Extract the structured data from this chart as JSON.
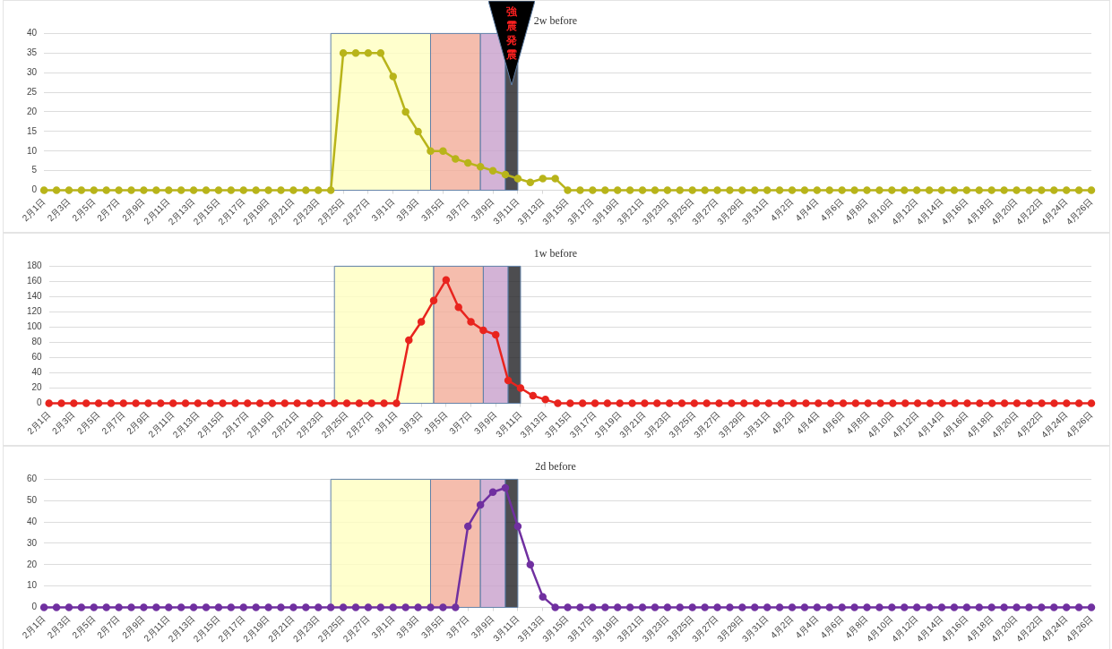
{
  "chart_data": [
    {
      "type": "line",
      "title": "2w before",
      "x": [
        "--02-01",
        "--02-02",
        "--02-03",
        "--02-04",
        "--02-05",
        "--02-06",
        "--02-07",
        "--02-08",
        "--02-09",
        "--02-10",
        "--02-11",
        "--02-12",
        "--02-13",
        "--02-14",
        "--02-15",
        "--02-16",
        "--02-17",
        "--02-18",
        "--02-19",
        "--02-20",
        "--02-21",
        "--02-22",
        "--02-23",
        "--02-24",
        "--02-25",
        "--02-26",
        "--02-27",
        "--02-28",
        "--03-01",
        "--03-02",
        "--03-03",
        "--03-04",
        "--03-05",
        "--03-06",
        "--03-07",
        "--03-08",
        "--03-09",
        "--03-10",
        "--03-11",
        "--03-12",
        "--03-13",
        "--03-14",
        "--03-15",
        "--03-16",
        "--03-17",
        "--03-18",
        "--03-19",
        "--03-20",
        "--03-21",
        "--03-22",
        "--03-23",
        "--03-24",
        "--03-25",
        "--03-26",
        "--03-27",
        "--03-28",
        "--03-29",
        "--03-30",
        "--03-31",
        "--04-01",
        "--04-02",
        "--04-03",
        "--04-04",
        "--04-05",
        "--04-06",
        "--04-07",
        "--04-08",
        "--04-09",
        "--04-10",
        "--04-11",
        "--04-12",
        "--04-13",
        "--04-14",
        "--04-15",
        "--04-16",
        "--04-17",
        "--04-18",
        "--04-19",
        "--04-20",
        "--04-21",
        "--04-22",
        "--04-23",
        "--04-24",
        "--04-25",
        "--04-26"
      ],
      "series": [
        {
          "color": "#b8b41a",
          "values": [
            0,
            0,
            0,
            0,
            0,
            0,
            0,
            0,
            0,
            0,
            0,
            0,
            0,
            0,
            0,
            0,
            0,
            0,
            0,
            0,
            0,
            0,
            0,
            0,
            35,
            35,
            35,
            35,
            29,
            20,
            15,
            10,
            10,
            8,
            7,
            6,
            5,
            4,
            3,
            2,
            3,
            3,
            0,
            0,
            0,
            0,
            0,
            0,
            0,
            0,
            0,
            0,
            0,
            0,
            0,
            0,
            0,
            0,
            0,
            0,
            0,
            0,
            0,
            0,
            0,
            0,
            0,
            0,
            0,
            0,
            0,
            0,
            0,
            0,
            0,
            0,
            0,
            0,
            0,
            0,
            0,
            0,
            0,
            0,
            0
          ]
        }
      ],
      "xlim": [
        "--02-01",
        "--04-26"
      ],
      "xticks": [
        {
          "value": "--02-01",
          "label": "2月1日"
        },
        {
          "value": "--02-03",
          "label": "2月3日"
        },
        {
          "value": "--02-05",
          "label": "2月5日"
        },
        {
          "value": "--02-07",
          "label": "2月7日"
        },
        {
          "value": "--02-09",
          "label": "2月9日"
        },
        {
          "value": "--02-11",
          "label": "2月11日"
        },
        {
          "value": "--02-13",
          "label": "2月13日"
        },
        {
          "value": "--02-15",
          "label": "2月15日"
        },
        {
          "value": "--02-17",
          "label": "2月17日"
        },
        {
          "value": "--02-19",
          "label": "2月19日"
        },
        {
          "value": "--02-21",
          "label": "2月21日"
        },
        {
          "value": "--02-23",
          "label": "2月23日"
        },
        {
          "value": "--02-25",
          "label": "2月25日"
        },
        {
          "value": "--02-27",
          "label": "2月27日"
        },
        {
          "value": "--03-01",
          "label": "3月1日"
        },
        {
          "value": "--03-03",
          "label": "3月3日"
        },
        {
          "value": "--03-05",
          "label": "3月5日"
        },
        {
          "value": "--03-07",
          "label": "3月7日"
        },
        {
          "value": "--03-09",
          "label": "3月9日"
        },
        {
          "value": "--03-11",
          "label": "3月11日"
        },
        {
          "value": "--03-13",
          "label": "3月13日"
        },
        {
          "value": "--03-15",
          "label": "3月15日"
        },
        {
          "value": "--03-17",
          "label": "3月17日"
        },
        {
          "value": "--03-19",
          "label": "3月19日"
        },
        {
          "value": "--03-21",
          "label": "3月21日"
        },
        {
          "value": "--03-23",
          "label": "3月23日"
        },
        {
          "value": "--03-25",
          "label": "3月25日"
        },
        {
          "value": "--03-27",
          "label": "3月27日"
        },
        {
          "value": "--03-29",
          "label": "3月29日"
        },
        {
          "value": "--03-31",
          "label": "3月31日"
        },
        {
          "value": "--04-02",
          "label": "4月2日"
        },
        {
          "value": "--04-04",
          "label": "4月4日"
        },
        {
          "value": "--04-06",
          "label": "4月6日"
        },
        {
          "value": "--04-08",
          "label": "4月8日"
        },
        {
          "value": "--04-10",
          "label": "4月10日"
        },
        {
          "value": "--04-12",
          "label": "4月12日"
        },
        {
          "value": "--04-14",
          "label": "4月14日"
        },
        {
          "value": "--04-16",
          "label": "4月16日"
        },
        {
          "value": "--04-18",
          "label": "4月18日"
        },
        {
          "value": "--04-20",
          "label": "4月20日"
        },
        {
          "value": "--04-22",
          "label": "4月22日"
        },
        {
          "value": "--04-24",
          "label": "4月24日"
        },
        {
          "value": "--04-26",
          "label": "4月26日"
        }
      ],
      "ylim": [
        0,
        40
      ],
      "yticks": [
        0,
        5,
        10,
        15,
        20,
        25,
        30,
        35,
        40
      ],
      "grid": "y",
      "marker": "circle",
      "bands": [
        {
          "axis": "x",
          "from": "--02-24",
          "to": "--03-04",
          "color": "#ffffc0"
        },
        {
          "axis": "x",
          "from": "--03-04",
          "to": "--03-08",
          "color": "#f2ac98"
        },
        {
          "axis": "x",
          "from": "--03-08",
          "to": "--03-10",
          "color": "#c8a0cc"
        },
        {
          "axis": "x",
          "from": "--03-10",
          "to": "--03-11",
          "color": "#202024",
          "label": "強震発震"
        }
      ]
    },
    {
      "type": "line",
      "title": "1w before",
      "x": [
        "--02-01",
        "--02-02",
        "--02-03",
        "--02-04",
        "--02-05",
        "--02-06",
        "--02-07",
        "--02-08",
        "--02-09",
        "--02-10",
        "--02-11",
        "--02-12",
        "--02-13",
        "--02-14",
        "--02-15",
        "--02-16",
        "--02-17",
        "--02-18",
        "--02-19",
        "--02-20",
        "--02-21",
        "--02-22",
        "--02-23",
        "--02-24",
        "--02-25",
        "--02-26",
        "--02-27",
        "--02-28",
        "--03-01",
        "--03-02",
        "--03-03",
        "--03-04",
        "--03-05",
        "--03-06",
        "--03-07",
        "--03-08",
        "--03-09",
        "--03-10",
        "--03-11",
        "--03-12",
        "--03-13",
        "--03-14",
        "--03-15",
        "--03-16",
        "--03-17",
        "--03-18",
        "--03-19",
        "--03-20",
        "--03-21",
        "--03-22",
        "--03-23",
        "--03-24",
        "--03-25",
        "--03-26",
        "--03-27",
        "--03-28",
        "--03-29",
        "--03-30",
        "--03-31",
        "--04-01",
        "--04-02",
        "--04-03",
        "--04-04",
        "--04-05",
        "--04-06",
        "--04-07",
        "--04-08",
        "--04-09",
        "--04-10",
        "--04-11",
        "--04-12",
        "--04-13",
        "--04-14",
        "--04-15",
        "--04-16",
        "--04-17",
        "--04-18",
        "--04-19",
        "--04-20",
        "--04-21",
        "--04-22",
        "--04-23",
        "--04-24",
        "--04-25",
        "--04-26"
      ],
      "series": [
        {
          "color": "#e8241e",
          "values": [
            0,
            0,
            0,
            0,
            0,
            0,
            0,
            0,
            0,
            0,
            0,
            0,
            0,
            0,
            0,
            0,
            0,
            0,
            0,
            0,
            0,
            0,
            0,
            0,
            0,
            0,
            0,
            0,
            0,
            83,
            107,
            135,
            162,
            126,
            107,
            96,
            90,
            30,
            20,
            10,
            5,
            0,
            0,
            0,
            0,
            0,
            0,
            0,
            0,
            0,
            0,
            0,
            0,
            0,
            0,
            0,
            0,
            0,
            0,
            0,
            0,
            0,
            0,
            0,
            0,
            0,
            0,
            0,
            0,
            0,
            0,
            0,
            0,
            0,
            0,
            0,
            0,
            0,
            0,
            0,
            0,
            0,
            0,
            0,
            0
          ]
        }
      ],
      "xlim": [
        "--02-01",
        "--04-26"
      ],
      "xticks": [
        {
          "value": "--02-01",
          "label": "2月1日"
        },
        {
          "value": "--02-03",
          "label": "2月3日"
        },
        {
          "value": "--02-05",
          "label": "2月5日"
        },
        {
          "value": "--02-07",
          "label": "2月7日"
        },
        {
          "value": "--02-09",
          "label": "2月9日"
        },
        {
          "value": "--02-11",
          "label": "2月11日"
        },
        {
          "value": "--02-13",
          "label": "2月13日"
        },
        {
          "value": "--02-15",
          "label": "2月15日"
        },
        {
          "value": "--02-17",
          "label": "2月17日"
        },
        {
          "value": "--02-19",
          "label": "2月19日"
        },
        {
          "value": "--02-21",
          "label": "2月21日"
        },
        {
          "value": "--02-23",
          "label": "2月23日"
        },
        {
          "value": "--02-25",
          "label": "2月25日"
        },
        {
          "value": "--02-27",
          "label": "2月27日"
        },
        {
          "value": "--03-01",
          "label": "3月1日"
        },
        {
          "value": "--03-03",
          "label": "3月3日"
        },
        {
          "value": "--03-05",
          "label": "3月5日"
        },
        {
          "value": "--03-07",
          "label": "3月7日"
        },
        {
          "value": "--03-09",
          "label": "3月9日"
        },
        {
          "value": "--03-11",
          "label": "3月11日"
        },
        {
          "value": "--03-13",
          "label": "3月13日"
        },
        {
          "value": "--03-15",
          "label": "3月15日"
        },
        {
          "value": "--03-17",
          "label": "3月17日"
        },
        {
          "value": "--03-19",
          "label": "3月19日"
        },
        {
          "value": "--03-21",
          "label": "3月21日"
        },
        {
          "value": "--03-23",
          "label": "3月23日"
        },
        {
          "value": "--03-25",
          "label": "3月25日"
        },
        {
          "value": "--03-27",
          "label": "3月27日"
        },
        {
          "value": "--03-29",
          "label": "3月29日"
        },
        {
          "value": "--03-31",
          "label": "3月31日"
        },
        {
          "value": "--04-02",
          "label": "4月2日"
        },
        {
          "value": "--04-04",
          "label": "4月4日"
        },
        {
          "value": "--04-06",
          "label": "4月6日"
        },
        {
          "value": "--04-08",
          "label": "4月8日"
        },
        {
          "value": "--04-10",
          "label": "4月10日"
        },
        {
          "value": "--04-12",
          "label": "4月12日"
        },
        {
          "value": "--04-14",
          "label": "4月14日"
        },
        {
          "value": "--04-16",
          "label": "4月16日"
        },
        {
          "value": "--04-18",
          "label": "4月18日"
        },
        {
          "value": "--04-20",
          "label": "4月20日"
        },
        {
          "value": "--04-22",
          "label": "4月22日"
        },
        {
          "value": "--04-24",
          "label": "4月24日"
        },
        {
          "value": "--04-26",
          "label": "4月26日"
        }
      ],
      "ylim": [
        0,
        180
      ],
      "yticks": [
        0,
        20,
        40,
        60,
        80,
        100,
        120,
        140,
        160,
        180
      ],
      "grid": "y",
      "marker": "circle",
      "bands": [
        {
          "axis": "x",
          "from": "--02-24",
          "to": "--03-04",
          "color": "#ffffc0"
        },
        {
          "axis": "x",
          "from": "--03-04",
          "to": "--03-08",
          "color": "#f2ac98"
        },
        {
          "axis": "x",
          "from": "--03-08",
          "to": "--03-10",
          "color": "#c8a0cc"
        },
        {
          "axis": "x",
          "from": "--03-10",
          "to": "--03-11",
          "color": "#202024"
        }
      ]
    },
    {
      "type": "line",
      "title": "2d before",
      "x": [
        "--02-01",
        "--02-02",
        "--02-03",
        "--02-04",
        "--02-05",
        "--02-06",
        "--02-07",
        "--02-08",
        "--02-09",
        "--02-10",
        "--02-11",
        "--02-12",
        "--02-13",
        "--02-14",
        "--02-15",
        "--02-16",
        "--02-17",
        "--02-18",
        "--02-19",
        "--02-20",
        "--02-21",
        "--02-22",
        "--02-23",
        "--02-24",
        "--02-25",
        "--02-26",
        "--02-27",
        "--02-28",
        "--03-01",
        "--03-02",
        "--03-03",
        "--03-04",
        "--03-05",
        "--03-06",
        "--03-07",
        "--03-08",
        "--03-09",
        "--03-10",
        "--03-11",
        "--03-12",
        "--03-13",
        "--03-14",
        "--03-15",
        "--03-16",
        "--03-17",
        "--03-18",
        "--03-19",
        "--03-20",
        "--03-21",
        "--03-22",
        "--03-23",
        "--03-24",
        "--03-25",
        "--03-26",
        "--03-27",
        "--03-28",
        "--03-29",
        "--03-30",
        "--03-31",
        "--04-01",
        "--04-02",
        "--04-03",
        "--04-04",
        "--04-05",
        "--04-06",
        "--04-07",
        "--04-08",
        "--04-09",
        "--04-10",
        "--04-11",
        "--04-12",
        "--04-13",
        "--04-14",
        "--04-15",
        "--04-16",
        "--04-17",
        "--04-18",
        "--04-19",
        "--04-20",
        "--04-21",
        "--04-22",
        "--04-23",
        "--04-24",
        "--04-25",
        "--04-26"
      ],
      "series": [
        {
          "color": "#7030a0",
          "values": [
            0,
            0,
            0,
            0,
            0,
            0,
            0,
            0,
            0,
            0,
            0,
            0,
            0,
            0,
            0,
            0,
            0,
            0,
            0,
            0,
            0,
            0,
            0,
            0,
            0,
            0,
            0,
            0,
            0,
            0,
            0,
            0,
            0,
            0,
            38,
            48,
            54,
            56,
            38,
            20,
            5,
            0,
            0,
            0,
            0,
            0,
            0,
            0,
            0,
            0,
            0,
            0,
            0,
            0,
            0,
            0,
            0,
            0,
            0,
            0,
            0,
            0,
            0,
            0,
            0,
            0,
            0,
            0,
            0,
            0,
            0,
            0,
            0,
            0,
            0,
            0,
            0,
            0,
            0,
            0,
            0,
            0,
            0,
            0,
            0
          ]
        }
      ],
      "xlim": [
        "--02-01",
        "--04-26"
      ],
      "xticks": [
        {
          "value": "--02-01",
          "label": "2月1日"
        },
        {
          "value": "--02-03",
          "label": "2月3日"
        },
        {
          "value": "--02-05",
          "label": "2月5日"
        },
        {
          "value": "--02-07",
          "label": "2月7日"
        },
        {
          "value": "--02-09",
          "label": "2月9日"
        },
        {
          "value": "--02-11",
          "label": "2月11日"
        },
        {
          "value": "--02-13",
          "label": "2月13日"
        },
        {
          "value": "--02-15",
          "label": "2月15日"
        },
        {
          "value": "--02-17",
          "label": "2月17日"
        },
        {
          "value": "--02-19",
          "label": "2月19日"
        },
        {
          "value": "--02-21",
          "label": "2月21日"
        },
        {
          "value": "--02-23",
          "label": "2月23日"
        },
        {
          "value": "--02-25",
          "label": "2月25日"
        },
        {
          "value": "--02-27",
          "label": "2月27日"
        },
        {
          "value": "--03-01",
          "label": "3月1日"
        },
        {
          "value": "--03-03",
          "label": "3月3日"
        },
        {
          "value": "--03-05",
          "label": "3月5日"
        },
        {
          "value": "--03-07",
          "label": "3月7日"
        },
        {
          "value": "--03-09",
          "label": "3月9日"
        },
        {
          "value": "--03-11",
          "label": "3月11日"
        },
        {
          "value": "--03-13",
          "label": "3月13日"
        },
        {
          "value": "--03-15",
          "label": "3月15日"
        },
        {
          "value": "--03-17",
          "label": "3月17日"
        },
        {
          "value": "--03-19",
          "label": "3月19日"
        },
        {
          "value": "--03-21",
          "label": "3月21日"
        },
        {
          "value": "--03-23",
          "label": "3月23日"
        },
        {
          "value": "--03-25",
          "label": "3月25日"
        },
        {
          "value": "--03-27",
          "label": "3月27日"
        },
        {
          "value": "--03-29",
          "label": "3月29日"
        },
        {
          "value": "--03-31",
          "label": "3月31日"
        },
        {
          "value": "--04-02",
          "label": "4月2日"
        },
        {
          "value": "--04-04",
          "label": "4月4日"
        },
        {
          "value": "--04-06",
          "label": "4月6日"
        },
        {
          "value": "--04-08",
          "label": "4月8日"
        },
        {
          "value": "--04-10",
          "label": "4月10日"
        },
        {
          "value": "--04-12",
          "label": "4月12日"
        },
        {
          "value": "--04-14",
          "label": "4月14日"
        },
        {
          "value": "--04-16",
          "label": "4月16日"
        },
        {
          "value": "--04-18",
          "label": "4月18日"
        },
        {
          "value": "--04-20",
          "label": "4月20日"
        },
        {
          "value": "--04-22",
          "label": "4月22日"
        },
        {
          "value": "--04-24",
          "label": "4月24日"
        },
        {
          "value": "--04-26",
          "label": "4月26日"
        }
      ],
      "ylim": [
        0,
        60
      ],
      "yticks": [
        0,
        10,
        20,
        30,
        40,
        50,
        60
      ],
      "grid": "y",
      "marker": "circle",
      "bands": [
        {
          "axis": "x",
          "from": "--02-24",
          "to": "--03-04",
          "color": "#ffffc0"
        },
        {
          "axis": "x",
          "from": "--03-04",
          "to": "--03-08",
          "color": "#f2ac98"
        },
        {
          "axis": "x",
          "from": "--03-08",
          "to": "--03-10",
          "color": "#c8a0cc"
        },
        {
          "axis": "x",
          "from": "--03-10",
          "to": "--03-11",
          "color": "#202024"
        }
      ]
    }
  ]
}
